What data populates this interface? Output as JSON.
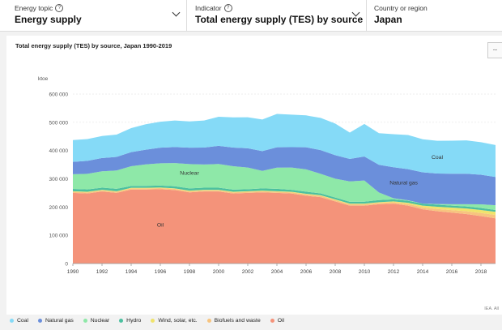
{
  "selectors": [
    {
      "label": "Energy topic",
      "value": "Energy supply"
    },
    {
      "label": "Indicator",
      "value": "Total energy supply (TES) by source"
    },
    {
      "label": "Country or region",
      "value": "Japan"
    }
  ],
  "chart_title": "Total energy supply (TES) by source, Japan 1990-2019",
  "source_text": "IEA. All",
  "chart_data": {
    "type": "area",
    "stacked": true,
    "ylabel": "ktoe",
    "ylim": [
      0,
      600000
    ],
    "yticks": [
      "0",
      "100 000",
      "200 000",
      "300 000",
      "400 000",
      "500 000",
      "600 000"
    ],
    "xticks": [
      "1990",
      "1992",
      "1994",
      "1996",
      "1998",
      "2000",
      "2002",
      "2004",
      "2006",
      "2008",
      "2010",
      "2012",
      "2014",
      "2016",
      "2018"
    ],
    "x": [
      1990,
      1991,
      1992,
      1993,
      1994,
      1995,
      1996,
      1997,
      1998,
      1999,
      2000,
      2001,
      2002,
      2003,
      2004,
      2005,
      2006,
      2007,
      2008,
      2009,
      2010,
      2011,
      2012,
      2013,
      2014,
      2015,
      2016,
      2017,
      2018,
      2019
    ],
    "series": [
      {
        "name": "Oil",
        "color": "#f4937a",
        "values": [
          250000,
          248000,
          255000,
          250000,
          262000,
          262000,
          263000,
          260000,
          252000,
          255000,
          255000,
          248000,
          250000,
          252000,
          250000,
          248000,
          240000,
          235000,
          220000,
          205000,
          205000,
          210000,
          212000,
          205000,
          192000,
          185000,
          180000,
          175000,
          168000,
          160000
        ]
      },
      {
        "name": "Biofuels and waste",
        "color": "#f7c47f",
        "values": [
          4000,
          4000,
          4000,
          4000,
          4000,
          4000,
          4000,
          4000,
          4000,
          4000,
          4000,
          4000,
          4000,
          4000,
          4000,
          4000,
          5000,
          5000,
          5000,
          5000,
          5000,
          5000,
          5000,
          6000,
          7000,
          8000,
          9000,
          10000,
          11000,
          12000
        ]
      },
      {
        "name": "Wind, solar, etc.",
        "color": "#f0e36c",
        "values": [
          2000,
          2000,
          2000,
          2000,
          2000,
          2000,
          2000,
          2000,
          2000,
          2000,
          2000,
          2000,
          2000,
          2000,
          2000,
          2000,
          2000,
          2000,
          2000,
          2000,
          2000,
          2000,
          3000,
          4000,
          6000,
          8000,
          9000,
          10000,
          10500,
          11000
        ]
      },
      {
        "name": "Hydro",
        "color": "#4cc0a0",
        "values": [
          8000,
          8500,
          7500,
          8500,
          6500,
          7000,
          7000,
          7500,
          8000,
          7500,
          7500,
          7500,
          7000,
          8000,
          8500,
          7000,
          7500,
          6500,
          6500,
          6500,
          7000,
          7500,
          7000,
          7000,
          7000,
          7500,
          7000,
          7000,
          7000,
          6500
        ]
      },
      {
        "name": "Nuclear",
        "color": "#8ee8a8",
        "values": [
          52000,
          55000,
          58000,
          65000,
          70000,
          76000,
          79000,
          82000,
          86000,
          82000,
          84000,
          83000,
          77000,
          62000,
          75000,
          79000,
          79000,
          69000,
          67000,
          72000,
          75000,
          27000,
          4000,
          2000,
          0,
          2000,
          5000,
          8000,
          13000,
          17000
        ]
      },
      {
        "name": "Natural gas",
        "color": "#6b8fdb",
        "values": [
          44000,
          46000,
          47000,
          48000,
          50000,
          52000,
          55000,
          57000,
          58000,
          60000,
          64000,
          66000,
          68000,
          70000,
          72000,
          72000,
          78000,
          84000,
          83000,
          80000,
          85000,
          98000,
          110000,
          110000,
          111000,
          108000,
          108000,
          108000,
          105000,
          100000
        ]
      },
      {
        "name": "Coal",
        "color": "#85daf7",
        "values": [
          77000,
          77000,
          78000,
          79000,
          85000,
          90000,
          92000,
          94000,
          93000,
          96000,
          103000,
          107000,
          110000,
          112000,
          118000,
          115000,
          113000,
          114000,
          112000,
          93000,
          115000,
          112000,
          117000,
          121000,
          117000,
          116000,
          117000,
          118000,
          115000,
          113000
        ]
      }
    ],
    "legend_order": [
      "Coal",
      "Natural gas",
      "Nuclear",
      "Hydro",
      "Wind, solar, etc.",
      "Biofuels and waste",
      "Oil"
    ],
    "annotations": [
      {
        "text": "Oil",
        "x": 1996,
        "y": 130000
      },
      {
        "text": "Nuclear",
        "x": 1998,
        "y": 315000
      },
      {
        "text": "Natural gas",
        "x": 2012.7,
        "y": 280000
      },
      {
        "text": "Coal",
        "x": 2015,
        "y": 370000
      }
    ],
    "grid": true,
    "legend_position": "bottom"
  }
}
